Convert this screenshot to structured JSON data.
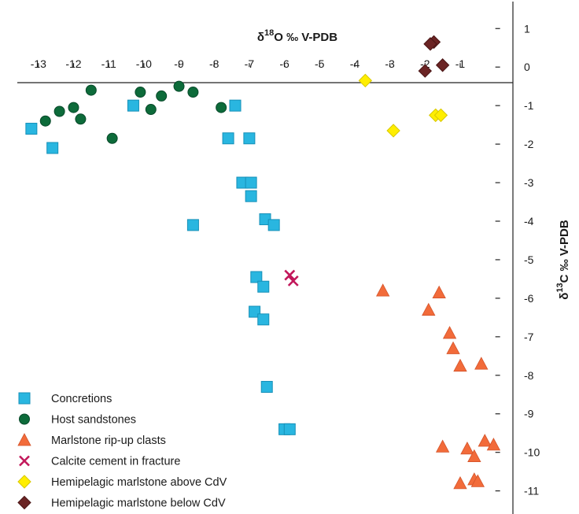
{
  "chart_data": {
    "type": "scatter",
    "title": "",
    "xlabel": "δ18O ‰ V-PDB",
    "ylabel": "δ13C ‰ V-PDB",
    "xlim": [
      -13.6,
      0.5
    ],
    "ylim": [
      -11.6,
      1.7
    ],
    "x_ticks": [
      -13,
      -12,
      -11,
      -10,
      -9,
      -8,
      -7,
      -6,
      -5,
      -4,
      -3,
      -2,
      -1
    ],
    "y_ticks": [
      1,
      0,
      -1,
      -2,
      -3,
      -4,
      -5,
      -6,
      -7,
      -8,
      -9,
      -10,
      -11
    ],
    "grid": false,
    "legend_position": "bottom-left",
    "series": [
      {
        "name": "Concretions",
        "marker": "square",
        "color": "#29b6e0",
        "points": [
          [
            -13.2,
            -1.6
          ],
          [
            -12.6,
            -2.1
          ],
          [
            -10.3,
            -1.0
          ],
          [
            -8.6,
            -4.1
          ],
          [
            -7.4,
            -1.0
          ],
          [
            -7.6,
            -1.85
          ],
          [
            -7.0,
            -1.85
          ],
          [
            -7.2,
            -3.0
          ],
          [
            -6.95,
            -3.0
          ],
          [
            -6.95,
            -3.35
          ],
          [
            -6.55,
            -3.95
          ],
          [
            -6.3,
            -4.1
          ],
          [
            -6.8,
            -5.45
          ],
          [
            -6.6,
            -5.7
          ],
          [
            -6.85,
            -6.35
          ],
          [
            -6.6,
            -6.55
          ],
          [
            -6.5,
            -8.3
          ],
          [
            -6.0,
            -9.4
          ],
          [
            -5.85,
            -9.4
          ]
        ]
      },
      {
        "name": "Host sandstones",
        "marker": "circle",
        "color": "#0d6b3a",
        "points": [
          [
            -12.8,
            -1.4
          ],
          [
            -12.4,
            -1.15
          ],
          [
            -12.0,
            -1.05
          ],
          [
            -11.8,
            -1.35
          ],
          [
            -11.5,
            -0.6
          ],
          [
            -10.9,
            -1.85
          ],
          [
            -10.1,
            -0.65
          ],
          [
            -9.8,
            -1.1
          ],
          [
            -9.5,
            -0.75
          ],
          [
            -9.0,
            -0.5
          ],
          [
            -8.6,
            -0.65
          ],
          [
            -7.8,
            -1.05
          ]
        ]
      },
      {
        "name": "Marlstone rip-up clasts",
        "marker": "triangle",
        "color": "#f26b3a",
        "points": [
          [
            -3.2,
            -5.8
          ],
          [
            -1.6,
            -5.85
          ],
          [
            -1.9,
            -6.3
          ],
          [
            -1.3,
            -6.9
          ],
          [
            -1.2,
            -7.3
          ],
          [
            -1.0,
            -7.75
          ],
          [
            -0.4,
            -7.7
          ],
          [
            -1.5,
            -9.85
          ],
          [
            -0.8,
            -9.9
          ],
          [
            -0.6,
            -10.1
          ],
          [
            -0.3,
            -9.7
          ],
          [
            -0.05,
            -9.8
          ],
          [
            -1.0,
            -10.8
          ],
          [
            -0.6,
            -10.7
          ],
          [
            -0.5,
            -10.75
          ]
        ]
      },
      {
        "name": "Calcite cement in fracture",
        "marker": "cross",
        "color": "#c2185b",
        "points": [
          [
            -5.85,
            -5.4
          ],
          [
            -5.75,
            -5.55
          ]
        ]
      },
      {
        "name": "Hemipelagic marlstone above CdV",
        "marker": "diamond",
        "color": "#ffee00",
        "points": [
          [
            -3.7,
            -0.35
          ],
          [
            -2.9,
            -1.65
          ],
          [
            -1.7,
            -1.25
          ],
          [
            -1.55,
            -1.25
          ]
        ]
      },
      {
        "name": "Hemipelagic marlstone below CdV",
        "marker": "diamond",
        "color": "#6b2424",
        "points": [
          [
            -2.0,
            -0.1
          ],
          [
            -1.75,
            0.65
          ],
          [
            -1.85,
            0.6
          ],
          [
            -1.5,
            0.05
          ]
        ]
      }
    ]
  }
}
